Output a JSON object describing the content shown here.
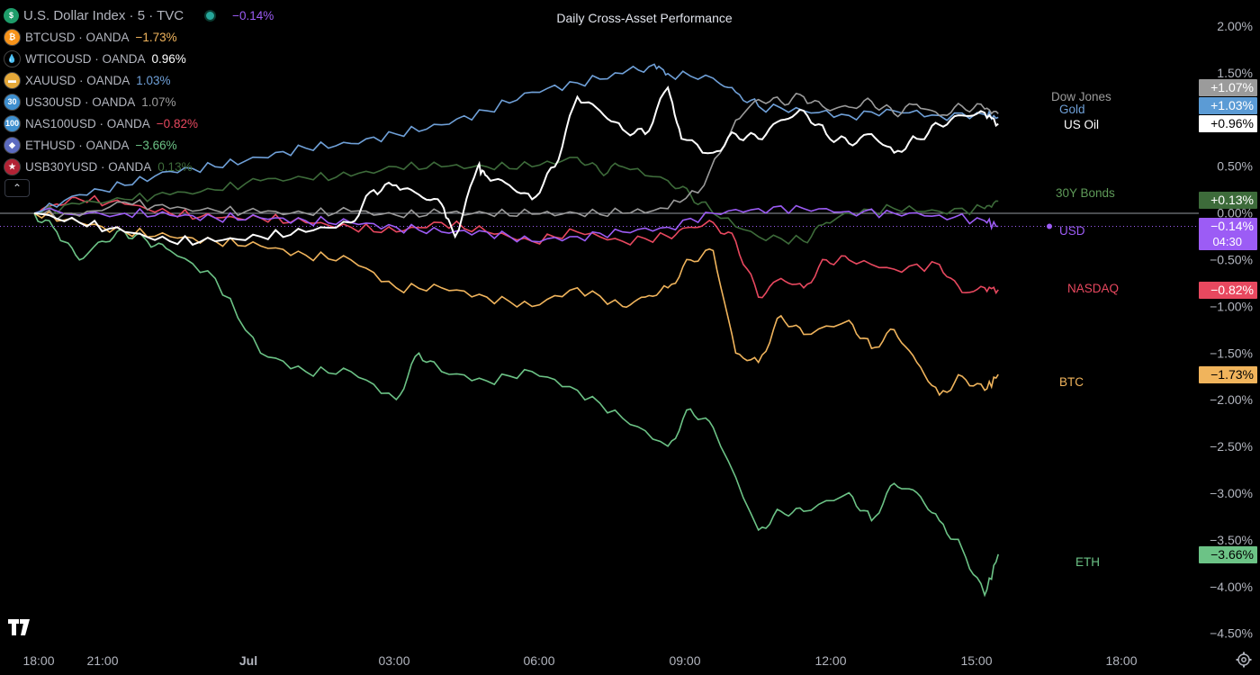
{
  "legend": {
    "main": {
      "icon_letter": "$",
      "icon": "dollar-icon",
      "name": "U.S. Dollar Index · 5 · TVC",
      "change": "−0.14%",
      "change_color": "#9c5cf5"
    },
    "items": [
      {
        "icon_letter": "₿",
        "icon": "bitcoin-icon",
        "icon_color": "#f7931a",
        "name": "BTCUSD · OANDA",
        "change": "−1.73%",
        "color": "#f0b45c"
      },
      {
        "icon_letter": "💧",
        "icon": "oil-drop-icon",
        "icon_color": "#000000",
        "name": "WTICOUSD · OANDA",
        "change": "0.96%",
        "color": "#ffffff"
      },
      {
        "icon_letter": "▬",
        "icon": "gold-bars-icon",
        "icon_color": "#e4a839",
        "name": "XAUUSD · OANDA",
        "change": "1.03%",
        "color": "#6fa0d8"
      },
      {
        "icon_letter": "30",
        "icon": "us30-icon",
        "icon_color": "#3e8fcf",
        "name": "US30USD · OANDA",
        "change": "1.07%",
        "color": "#9b9b9b"
      },
      {
        "icon_letter": "100",
        "icon": "nas100-icon",
        "icon_color": "#3e8fcf",
        "name": "NAS100USD · OANDA",
        "change": "−0.82%",
        "color": "#e8485f"
      },
      {
        "icon_letter": "◆",
        "icon": "ethereum-icon",
        "icon_color": "#5c6bc0",
        "name": "ETHUSD · OANDA",
        "change": "−3.66%",
        "color": "#6cc386"
      },
      {
        "icon_letter": "★",
        "icon": "us-flag-icon",
        "icon_color": "#b22234",
        "name": "USB30YUSD · OANDA",
        "change": "0.13%",
        "color": "#3d6b3a"
      }
    ]
  },
  "title": "Daily Cross-Asset Performance",
  "chart_data": {
    "type": "line",
    "title": "Daily Cross-Asset Performance",
    "x_ticks": [
      "18:00",
      "21:00",
      "Jul",
      "03:00",
      "06:00",
      "09:00",
      "12:00",
      "15:00",
      "18:00"
    ],
    "y_ticks": [
      "2.00%",
      "1.50%",
      "1.00%",
      "0.50%",
      "0.00%",
      "−0.50%",
      "−1.00%",
      "−1.50%",
      "−2.00%",
      "−2.50%",
      "−3.00%",
      "−3.50%",
      "−4.00%",
      "−4.50%"
    ],
    "ylim": [
      -4.6,
      2.2
    ],
    "x_unit_note": "hours since 18:00",
    "xlim": [
      0,
      24
    ],
    "series": [
      {
        "name": "Dow Jones",
        "color": "#9b9b9b",
        "end_label": "+1.07%",
        "label_color": "#9b9b9b",
        "badge_text_color": "#ffffff",
        "points": [
          [
            0,
            0
          ],
          [
            1,
            -0.03
          ],
          [
            2,
            0.12
          ],
          [
            3,
            0.05
          ],
          [
            4,
            0.03
          ],
          [
            5,
            0.01
          ],
          [
            6,
            0.0
          ],
          [
            7,
            0.02
          ],
          [
            8,
            -0.02
          ],
          [
            9,
            0.0
          ],
          [
            10,
            0.0
          ],
          [
            11,
            -0.01
          ],
          [
            12,
            0.0
          ],
          [
            13,
            0.0
          ],
          [
            14,
            0.05
          ],
          [
            14.8,
            0.3
          ],
          [
            15.5,
            1.0
          ],
          [
            16,
            1.22
          ],
          [
            16.5,
            1.2
          ],
          [
            17,
            1.25
          ],
          [
            17.5,
            1.12
          ],
          [
            18,
            1.14
          ],
          [
            18.5,
            1.2
          ],
          [
            19,
            1.07
          ],
          [
            19.5,
            1.17
          ],
          [
            20,
            1.05
          ],
          [
            20.5,
            1.15
          ],
          [
            21,
            1.12
          ],
          [
            21.3,
            1.07
          ]
        ]
      },
      {
        "name": "Gold",
        "color": "#6fa0d8",
        "end_label": "+1.03%",
        "label_color": "#6fa0d8",
        "badge_text_color": "#ffffff",
        "points": [
          [
            0,
            0
          ],
          [
            1,
            0.2
          ],
          [
            2,
            0.3
          ],
          [
            3,
            0.45
          ],
          [
            4,
            0.5
          ],
          [
            5,
            0.6
          ],
          [
            6,
            0.7
          ],
          [
            7,
            0.75
          ],
          [
            8,
            0.85
          ],
          [
            9,
            0.95
          ],
          [
            10,
            1.1
          ],
          [
            11,
            1.3
          ],
          [
            12,
            1.4
          ],
          [
            13,
            1.5
          ],
          [
            13.7,
            1.6
          ],
          [
            14,
            1.5
          ],
          [
            15,
            1.45
          ],
          [
            15.5,
            1.3
          ],
          [
            16,
            1.15
          ],
          [
            17,
            1.1
          ],
          [
            18,
            1.05
          ],
          [
            19,
            1.1
          ],
          [
            20,
            1.05
          ],
          [
            21,
            1.06
          ],
          [
            21.3,
            1.03
          ]
        ]
      },
      {
        "name": "US Oil",
        "color": "#ffffff",
        "end_label": "+0.96%",
        "label_color": "#ffffff",
        "badge_text_color": "#000000",
        "points": [
          [
            0,
            0
          ],
          [
            1,
            -0.1
          ],
          [
            2,
            -0.2
          ],
          [
            3,
            -0.3
          ],
          [
            4,
            -0.3
          ],
          [
            5,
            -0.25
          ],
          [
            6,
            -0.2
          ],
          [
            7,
            -0.1
          ],
          [
            7.5,
            0.25
          ],
          [
            8,
            0.3
          ],
          [
            8.5,
            0.2
          ],
          [
            9,
            0.1
          ],
          [
            9.3,
            -0.25
          ],
          [
            9.8,
            0.5
          ],
          [
            10,
            0.4
          ],
          [
            10.5,
            0.3
          ],
          [
            11,
            0.15
          ],
          [
            11.5,
            0.5
          ],
          [
            12,
            1.25
          ],
          [
            12.5,
            1.1
          ],
          [
            13,
            0.9
          ],
          [
            13.5,
            0.85
          ],
          [
            14,
            1.35
          ],
          [
            14.3,
            0.8
          ],
          [
            15,
            0.65
          ],
          [
            15.5,
            0.85
          ],
          [
            16,
            0.8
          ],
          [
            16.5,
            1.0
          ],
          [
            17,
            1.1
          ],
          [
            17.5,
            0.85
          ],
          [
            18,
            0.75
          ],
          [
            18.5,
            0.85
          ],
          [
            19,
            0.65
          ],
          [
            19.5,
            0.8
          ],
          [
            20,
            0.95
          ],
          [
            20.5,
            1.05
          ],
          [
            21,
            1.08
          ],
          [
            21.3,
            0.96
          ]
        ]
      },
      {
        "name": "30Y Bonds",
        "color": "#3d6b3a",
        "end_label": "+0.13%",
        "label_color": "#5e9a58",
        "badge_text_color": "#ffffff",
        "points": [
          [
            0,
            0
          ],
          [
            1,
            0.1
          ],
          [
            2,
            0.15
          ],
          [
            3,
            0.2
          ],
          [
            4,
            0.25
          ],
          [
            5,
            0.35
          ],
          [
            6,
            0.38
          ],
          [
            7,
            0.4
          ],
          [
            8,
            0.5
          ],
          [
            9,
            0.5
          ],
          [
            10,
            0.5
          ],
          [
            11,
            0.5
          ],
          [
            12,
            0.6
          ],
          [
            12.5,
            0.45
          ],
          [
            13,
            0.5
          ],
          [
            14,
            0.35
          ],
          [
            14.5,
            0.2
          ],
          [
            15,
            0.0
          ],
          [
            16,
            -0.25
          ],
          [
            17,
            -0.3
          ],
          [
            17.5,
            -0.1
          ],
          [
            18,
            0.0
          ],
          [
            19,
            0.05
          ],
          [
            20,
            0.02
          ],
          [
            21,
            0.05
          ],
          [
            21.3,
            0.13
          ]
        ]
      },
      {
        "name": "USD",
        "color": "#9c5cf5",
        "end_label": "−0.14%",
        "label_color": "#9c5cf5",
        "badge_text_color": "#ffffff",
        "badge_sub": "04:30",
        "points": [
          [
            0,
            0
          ],
          [
            2,
            0
          ],
          [
            3,
            -0.02
          ],
          [
            4,
            -0.05
          ],
          [
            5,
            -0.05
          ],
          [
            6,
            -0.08
          ],
          [
            7,
            -0.1
          ],
          [
            8,
            -0.15
          ],
          [
            9,
            -0.2
          ],
          [
            10,
            -0.2
          ],
          [
            11,
            -0.3
          ],
          [
            12,
            -0.25
          ],
          [
            13,
            -0.2
          ],
          [
            14,
            -0.15
          ],
          [
            15,
            0.0
          ],
          [
            16,
            0.05
          ],
          [
            17,
            0.05
          ],
          [
            18,
            0.02
          ],
          [
            19,
            0.0
          ],
          [
            20,
            -0.02
          ],
          [
            21,
            -0.08
          ],
          [
            21.3,
            -0.14
          ]
        ]
      },
      {
        "name": "NASDAQ",
        "color": "#e8485f",
        "end_label": "−0.82%",
        "label_color": "#e8485f",
        "badge_text_color": "#ffffff",
        "points": [
          [
            0,
            0
          ],
          [
            0.5,
            0.1
          ],
          [
            1,
            0.15
          ],
          [
            2,
            0.1
          ],
          [
            3,
            0.0
          ],
          [
            4,
            -0.05
          ],
          [
            5,
            -0.05
          ],
          [
            6,
            -0.1
          ],
          [
            7,
            -0.15
          ],
          [
            8,
            -0.2
          ],
          [
            9,
            -0.1
          ],
          [
            10,
            -0.2
          ],
          [
            11,
            -0.3
          ],
          [
            12,
            -0.2
          ],
          [
            13,
            -0.3
          ],
          [
            14,
            -0.25
          ],
          [
            14.5,
            -0.15
          ],
          [
            15,
            -0.1
          ],
          [
            15.5,
            -0.3
          ],
          [
            16,
            -0.9
          ],
          [
            16.5,
            -0.7
          ],
          [
            17,
            -0.8
          ],
          [
            17.5,
            -0.5
          ],
          [
            18,
            -0.5
          ],
          [
            19,
            -0.6
          ],
          [
            20,
            -0.55
          ],
          [
            20.5,
            -0.85
          ],
          [
            21,
            -0.8
          ],
          [
            21.3,
            -0.82
          ]
        ]
      },
      {
        "name": "BTC",
        "color": "#f0b45c",
        "end_label": "−1.73%",
        "label_color": "#f0b45c",
        "badge_text_color": "#000000",
        "points": [
          [
            0,
            0
          ],
          [
            1,
            -0.1
          ],
          [
            2,
            -0.2
          ],
          [
            3,
            -0.25
          ],
          [
            4,
            -0.3
          ],
          [
            5,
            -0.35
          ],
          [
            6,
            -0.45
          ],
          [
            7,
            -0.5
          ],
          [
            8,
            -0.8
          ],
          [
            9,
            -0.8
          ],
          [
            10,
            -0.9
          ],
          [
            11,
            -1.0
          ],
          [
            12,
            -0.8
          ],
          [
            13,
            -1.0
          ],
          [
            13.5,
            -0.9
          ],
          [
            14,
            -0.8
          ],
          [
            14.5,
            -0.5
          ],
          [
            15,
            -0.4
          ],
          [
            15.5,
            -1.5
          ],
          [
            16,
            -1.6
          ],
          [
            16.5,
            -1.1
          ],
          [
            17,
            -1.3
          ],
          [
            18,
            -1.15
          ],
          [
            18.5,
            -1.45
          ],
          [
            19,
            -1.25
          ],
          [
            19.5,
            -1.6
          ],
          [
            20,
            -1.95
          ],
          [
            20.5,
            -1.75
          ],
          [
            21,
            -1.9
          ],
          [
            21.3,
            -1.73
          ]
        ]
      },
      {
        "name": "ETH",
        "color": "#6cc386",
        "end_label": "−3.66%",
        "label_color": "#6cc386",
        "badge_text_color": "#000000",
        "points": [
          [
            0,
            0
          ],
          [
            0.5,
            -0.2
          ],
          [
            1,
            -0.5
          ],
          [
            1.5,
            -0.3
          ],
          [
            2,
            -0.2
          ],
          [
            2.5,
            -0.3
          ],
          [
            3,
            -0.4
          ],
          [
            4,
            -0.7
          ],
          [
            5,
            -1.5
          ],
          [
            6,
            -1.7
          ],
          [
            7,
            -1.7
          ],
          [
            8,
            -2.0
          ],
          [
            8.5,
            -1.5
          ],
          [
            9,
            -1.7
          ],
          [
            10,
            -1.8
          ],
          [
            11,
            -1.7
          ],
          [
            12,
            -1.9
          ],
          [
            13,
            -2.2
          ],
          [
            14,
            -2.5
          ],
          [
            14.5,
            -2.1
          ],
          [
            15,
            -2.3
          ],
          [
            16,
            -3.4
          ],
          [
            16.5,
            -3.2
          ],
          [
            17,
            -3.2
          ],
          [
            18,
            -3.0
          ],
          [
            18.5,
            -3.3
          ],
          [
            19,
            -2.9
          ],
          [
            19.5,
            -3.0
          ],
          [
            20,
            -3.3
          ],
          [
            20.5,
            -3.6
          ],
          [
            21,
            -4.1
          ],
          [
            21.3,
            -3.66
          ]
        ]
      }
    ],
    "current_time": "04:30"
  }
}
